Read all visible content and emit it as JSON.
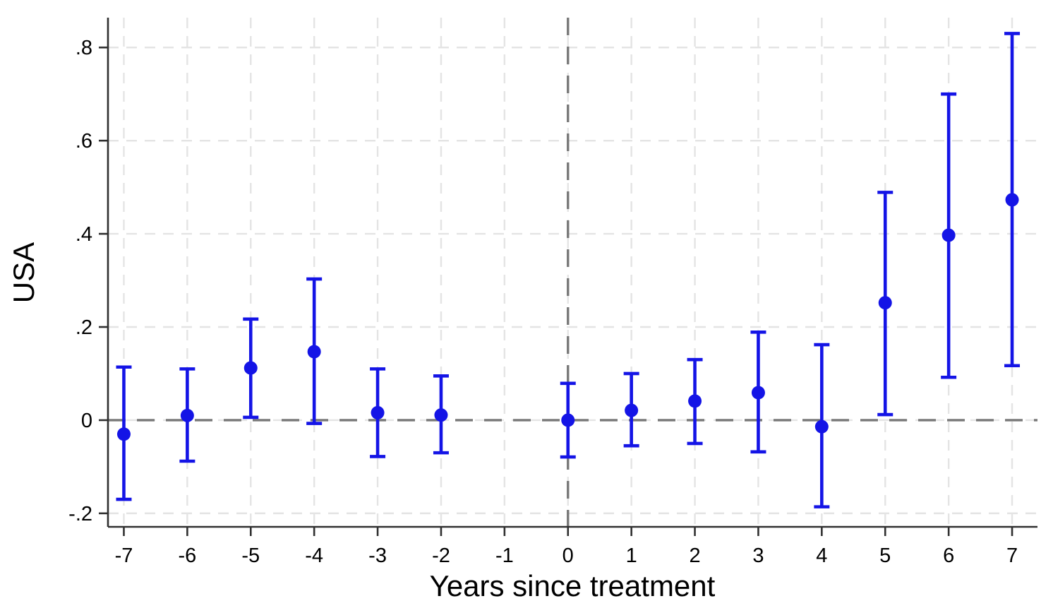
{
  "chart_data": {
    "type": "scatter",
    "subtype": "event-study-errorbar",
    "title": "",
    "xlabel": "Years since treatment",
    "ylabel": "USA",
    "grid": true,
    "legend_position": "none",
    "xlim": [
      -7.25,
      7.4
    ],
    "ylim": [
      -0.229,
      0.864
    ],
    "x_ticks": [
      -7,
      -6,
      -5,
      -4,
      -3,
      -2,
      -1,
      0,
      1,
      2,
      3,
      4,
      5,
      6,
      7
    ],
    "x_tick_labels": [
      "-7",
      "-6",
      "-5",
      "-4",
      "-3",
      "-2",
      "-1",
      "0",
      "1",
      "2",
      "3",
      "4",
      "5",
      "6",
      "7"
    ],
    "y_ticks": [
      -0.2,
      0,
      0.2,
      0.4,
      0.6,
      0.8
    ],
    "y_tick_labels": [
      "-.2",
      "0",
      ".2",
      ".4",
      ".6",
      ".8"
    ],
    "reference_lines": {
      "vertical_x": 0,
      "horizontal_y": 0
    },
    "omitted_period": -1,
    "colors": {
      "point": "#1414e6",
      "ref_line": "#787878",
      "grid_line": "#e4e4e4",
      "axis_line": "#303030",
      "text": "#000000",
      "background": "#ffffff"
    },
    "series": [
      {
        "name": "USA",
        "color": "#1414e6",
        "points": [
          {
            "x": -7,
            "y": -0.03,
            "ci_low": -0.17,
            "ci_high": 0.114
          },
          {
            "x": -6,
            "y": 0.01,
            "ci_low": -0.088,
            "ci_high": 0.11
          },
          {
            "x": -5,
            "y": 0.112,
            "ci_low": 0.006,
            "ci_high": 0.217
          },
          {
            "x": -4,
            "y": 0.147,
            "ci_low": -0.007,
            "ci_high": 0.303
          },
          {
            "x": -3,
            "y": 0.016,
            "ci_low": -0.078,
            "ci_high": 0.11
          },
          {
            "x": -2,
            "y": 0.011,
            "ci_low": -0.07,
            "ci_high": 0.095
          },
          {
            "x": 0,
            "y": 0.0,
            "ci_low": -0.079,
            "ci_high": 0.079
          },
          {
            "x": 1,
            "y": 0.021,
            "ci_low": -0.055,
            "ci_high": 0.1
          },
          {
            "x": 2,
            "y": 0.041,
            "ci_low": -0.05,
            "ci_high": 0.13
          },
          {
            "x": 3,
            "y": 0.059,
            "ci_low": -0.068,
            "ci_high": 0.189
          },
          {
            "x": 4,
            "y": -0.014,
            "ci_low": -0.186,
            "ci_high": 0.162
          },
          {
            "x": 5,
            "y": 0.252,
            "ci_low": 0.012,
            "ci_high": 0.489
          },
          {
            "x": 6,
            "y": 0.397,
            "ci_low": 0.092,
            "ci_high": 0.7
          },
          {
            "x": 7,
            "y": 0.473,
            "ci_low": 0.117,
            "ci_high": 0.83
          }
        ]
      }
    ]
  }
}
